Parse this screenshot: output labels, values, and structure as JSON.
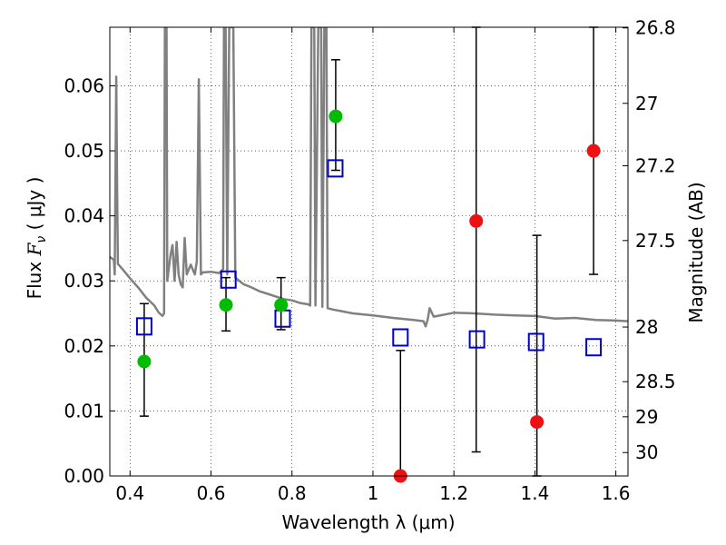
{
  "chart_data": {
    "type": "scatter",
    "xlabel": "Wavelength  λ (μm)",
    "ylabel": "Flux  F_ν  ( μJy )",
    "ylabel_parts": {
      "prefix": "Flux  ",
      "symbol": "F",
      "subscript": "ν",
      "unit": "  ( μJy )"
    },
    "y2label": "Magnitude (AB)",
    "xlim": [
      0.35,
      1.63
    ],
    "ylim": [
      0.0,
      0.069
    ],
    "grid": true,
    "x_ticks": [
      {
        "value": 0.4,
        "label": "0.4"
      },
      {
        "value": 0.6,
        "label": "0.6"
      },
      {
        "value": 0.8,
        "label": "0.8"
      },
      {
        "value": 1.0,
        "label": "1"
      },
      {
        "value": 1.2,
        "label": "1.2"
      },
      {
        "value": 1.4,
        "label": "1.4"
      },
      {
        "value": 1.6,
        "label": "1.6"
      }
    ],
    "y_ticks": [
      {
        "value": 0.0,
        "label": "0.00"
      },
      {
        "value": 0.01,
        "label": "0.01"
      },
      {
        "value": 0.02,
        "label": "0.02"
      },
      {
        "value": 0.03,
        "label": "0.03"
      },
      {
        "value": 0.04,
        "label": "0.04"
      },
      {
        "value": 0.05,
        "label": "0.05"
      },
      {
        "value": 0.06,
        "label": "0.06"
      }
    ],
    "y2_ticks": [
      {
        "flux": 0.0689,
        "label": "26.8"
      },
      {
        "flux": 0.0573,
        "label": "27"
      },
      {
        "flux": 0.0477,
        "label": "27.2"
      },
      {
        "flux": 0.0362,
        "label": "27.5"
      },
      {
        "flux": 0.0229,
        "label": "28"
      },
      {
        "flux": 0.0145,
        "label": "28.5"
      },
      {
        "flux": 0.0091,
        "label": "29"
      },
      {
        "flux": 0.0036,
        "label": "30"
      }
    ],
    "series": [
      {
        "kind": "line",
        "color": "#808080",
        "points": [
          [
            0.35,
            0.0337
          ],
          [
            0.36,
            0.0332
          ],
          [
            0.362,
            0.031
          ],
          [
            0.364,
            0.045
          ],
          [
            0.366,
            0.0614
          ],
          [
            0.368,
            0.045
          ],
          [
            0.37,
            0.0326
          ],
          [
            0.38,
            0.0319
          ],
          [
            0.4,
            0.0304
          ],
          [
            0.42,
            0.029
          ],
          [
            0.44,
            0.0274
          ],
          [
            0.46,
            0.0262
          ],
          [
            0.47,
            0.0252
          ],
          [
            0.48,
            0.0246
          ],
          [
            0.484,
            0.025
          ],
          [
            0.486,
            0.069
          ],
          [
            0.49,
            0.069
          ],
          [
            0.492,
            0.03
          ],
          [
            0.5,
            0.034
          ],
          [
            0.505,
            0.0355
          ],
          [
            0.51,
            0.03
          ],
          [
            0.515,
            0.036
          ],
          [
            0.52,
            0.031
          ],
          [
            0.525,
            0.0295
          ],
          [
            0.53,
            0.029
          ],
          [
            0.535,
            0.0366
          ],
          [
            0.54,
            0.031
          ],
          [
            0.55,
            0.0325
          ],
          [
            0.56,
            0.031
          ],
          [
            0.565,
            0.033
          ],
          [
            0.57,
            0.061
          ],
          [
            0.575,
            0.031
          ],
          [
            0.58,
            0.0313
          ],
          [
            0.6,
            0.0314
          ],
          [
            0.62,
            0.0312
          ],
          [
            0.63,
            0.0318
          ],
          [
            0.632,
            0.069
          ],
          [
            0.636,
            0.069
          ],
          [
            0.64,
            0.031
          ],
          [
            0.645,
            0.069
          ],
          [
            0.65,
            0.069
          ],
          [
            0.655,
            0.069
          ],
          [
            0.66,
            0.0305
          ],
          [
            0.68,
            0.0295
          ],
          [
            0.7,
            0.029
          ],
          [
            0.72,
            0.0284
          ],
          [
            0.74,
            0.028
          ],
          [
            0.76,
            0.0276
          ],
          [
            0.78,
            0.0272
          ],
          [
            0.8,
            0.027
          ],
          [
            0.82,
            0.0266
          ],
          [
            0.84,
            0.0264
          ],
          [
            0.845,
            0.0262
          ],
          [
            0.848,
            0.069
          ],
          [
            0.855,
            0.069
          ],
          [
            0.858,
            0.0262
          ],
          [
            0.865,
            0.069
          ],
          [
            0.872,
            0.069
          ],
          [
            0.875,
            0.026
          ],
          [
            0.88,
            0.069
          ],
          [
            0.885,
            0.069
          ],
          [
            0.888,
            0.0258
          ],
          [
            0.9,
            0.0256
          ],
          [
            0.95,
            0.025
          ],
          [
            1.0,
            0.0247
          ],
          [
            1.05,
            0.0243
          ],
          [
            1.1,
            0.024
          ],
          [
            1.125,
            0.0238
          ],
          [
            1.13,
            0.023
          ],
          [
            1.135,
            0.024
          ],
          [
            1.14,
            0.0258
          ],
          [
            1.15,
            0.0245
          ],
          [
            1.2,
            0.0251
          ],
          [
            1.25,
            0.025
          ],
          [
            1.3,
            0.0248
          ],
          [
            1.35,
            0.0247
          ],
          [
            1.4,
            0.0246
          ],
          [
            1.45,
            0.0242
          ],
          [
            1.5,
            0.0243
          ],
          [
            1.55,
            0.024
          ],
          [
            1.6,
            0.0239
          ],
          [
            1.63,
            0.0238
          ]
        ]
      },
      {
        "kind": "errorbar",
        "color": "#000000",
        "bars": [
          {
            "x": 0.435,
            "low": 0.0092,
            "high": 0.0265
          },
          {
            "x": 0.637,
            "low": 0.0223,
            "high": 0.0305
          },
          {
            "x": 0.773,
            "low": 0.0225,
            "high": 0.0305
          },
          {
            "x": 0.908,
            "low": 0.047,
            "high": 0.064
          },
          {
            "x": 1.068,
            "low": 0.0,
            "high": 0.0193
          },
          {
            "x": 1.255,
            "low": 0.0037,
            "high": 0.069
          },
          {
            "x": 1.405,
            "low": 0.0,
            "high": 0.037
          },
          {
            "x": 1.545,
            "low": 0.031,
            "high": 0.069
          }
        ]
      },
      {
        "kind": "marker-square",
        "color": "#0000cc",
        "points": [
          [
            0.435,
            0.023
          ],
          [
            0.643,
            0.0302
          ],
          [
            0.777,
            0.0242
          ],
          [
            0.907,
            0.0473
          ],
          [
            1.068,
            0.0213
          ],
          [
            1.257,
            0.021
          ],
          [
            1.403,
            0.0206
          ],
          [
            1.545,
            0.0198
          ]
        ]
      },
      {
        "kind": "marker-circle",
        "color": "#00bb00",
        "points": [
          [
            0.435,
            0.0176
          ],
          [
            0.637,
            0.0263
          ],
          [
            0.773,
            0.0263
          ],
          [
            0.908,
            0.0553
          ]
        ]
      },
      {
        "kind": "marker-circle",
        "color": "#ee1111",
        "points": [
          [
            1.068,
            0.0
          ],
          [
            1.255,
            0.0392
          ],
          [
            1.405,
            0.0083
          ],
          [
            1.545,
            0.05
          ]
        ]
      }
    ]
  }
}
